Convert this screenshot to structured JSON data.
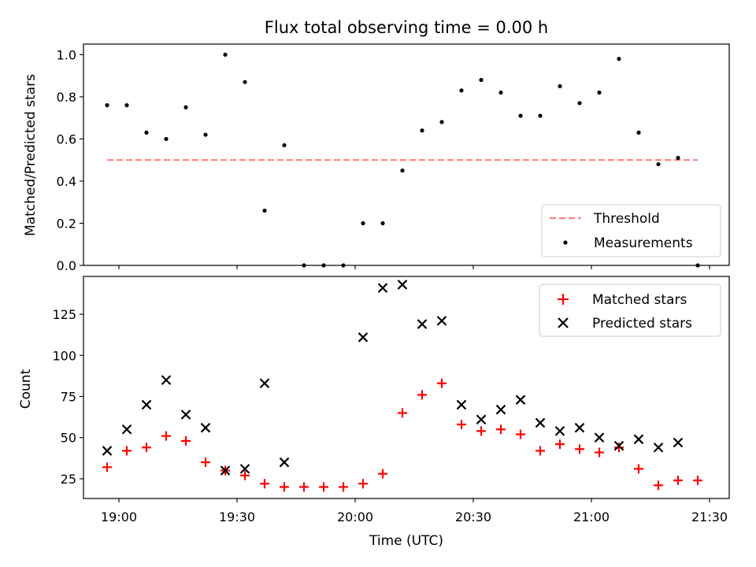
{
  "chart_data": [
    {
      "type": "scatter",
      "title": "Flux total observing time = 0.00 h",
      "ylabel": "Matched/Predicted stars",
      "xlabel": "",
      "xlim": [
        "18:51",
        "21:35"
      ],
      "ylim": [
        0,
        1.05
      ],
      "yticks": [
        0.0,
        0.2,
        0.4,
        0.6,
        0.8,
        1.0
      ],
      "ytick_labels": [
        "0.0",
        "0.2",
        "0.4",
        "0.6",
        "0.8",
        "1.0"
      ],
      "legend_position": "lower-right",
      "legend": [
        "Threshold",
        "Measurements"
      ],
      "threshold": {
        "name": "Threshold",
        "value": 0.5,
        "x": [
          "18:57",
          "21:27"
        ],
        "color": "#ff7f7f",
        "style": "dashed"
      },
      "series": [
        {
          "name": "Measurements",
          "marker": "dot",
          "color": "#000000",
          "x": [
            "18:57",
            "19:02",
            "19:07",
            "19:12",
            "19:17",
            "19:22",
            "19:27",
            "19:32",
            "19:37",
            "19:42",
            "19:47",
            "19:52",
            "19:57",
            "20:02",
            "20:07",
            "20:12",
            "20:17",
            "20:22",
            "20:27",
            "20:32",
            "20:37",
            "20:42",
            "20:47",
            "20:52",
            "20:57",
            "21:02",
            "21:07",
            "21:12",
            "21:17",
            "21:22",
            "21:27"
          ],
          "y": [
            0.76,
            0.76,
            0.63,
            0.6,
            0.75,
            0.62,
            1.0,
            0.87,
            0.26,
            0.57,
            0.0,
            0.0,
            0.0,
            0.2,
            0.2,
            0.45,
            0.64,
            0.68,
            0.83,
            0.88,
            0.82,
            0.71,
            0.71,
            0.85,
            0.77,
            0.82,
            0.98,
            0.63,
            0.48,
            0.51,
            0.0
          ]
        }
      ]
    },
    {
      "type": "scatter",
      "title": "",
      "ylabel": "Count",
      "xlabel": "Time (UTC)",
      "xlim": [
        "18:51",
        "21:35"
      ],
      "ylim": [
        13,
        148
      ],
      "yticks": [
        25,
        50,
        75,
        100,
        125
      ],
      "ytick_labels": [
        "25",
        "50",
        "75",
        "100",
        "125"
      ],
      "xticks": [
        "19:00",
        "19:30",
        "20:00",
        "20:30",
        "21:00",
        "21:30"
      ],
      "legend_position": "upper-right",
      "legend": [
        "Matched stars",
        "Predicted stars"
      ],
      "series": [
        {
          "name": "Matched stars",
          "marker": "plus",
          "color": "#ff0000",
          "x": [
            "18:57",
            "19:02",
            "19:07",
            "19:12",
            "19:17",
            "19:22",
            "19:27",
            "19:32",
            "19:37",
            "19:42",
            "19:47",
            "19:52",
            "19:57",
            "20:02",
            "20:07",
            "20:12",
            "20:17",
            "20:22",
            "20:27",
            "20:32",
            "20:37",
            "20:42",
            "20:47",
            "20:52",
            "20:57",
            "21:02",
            "21:07",
            "21:12",
            "21:17",
            "21:22",
            "21:27"
          ],
          "y": [
            32,
            42,
            44,
            51,
            48,
            35,
            30,
            27,
            22,
            20,
            20,
            20,
            20,
            22,
            28,
            65,
            76,
            83,
            58,
            54,
            55,
            52,
            42,
            46,
            43,
            41,
            44,
            31,
            21,
            24,
            24
          ]
        },
        {
          "name": "Predicted stars",
          "marker": "x",
          "color": "#000000",
          "x": [
            "18:57",
            "19:02",
            "19:07",
            "19:12",
            "19:17",
            "19:22",
            "19:27",
            "19:32",
            "19:37",
            "19:42",
            "20:02",
            "20:07",
            "20:12",
            "20:17",
            "20:22",
            "20:27",
            "20:32",
            "20:37",
            "20:42",
            "20:47",
            "20:52",
            "20:57",
            "21:02",
            "21:07",
            "21:12",
            "21:17",
            "21:22"
          ],
          "y": [
            42,
            55,
            70,
            85,
            64,
            56,
            30,
            31,
            83,
            35,
            111,
            141,
            143,
            119,
            121,
            70,
            61,
            67,
            73,
            59,
            54,
            56,
            50,
            45,
            49,
            44,
            47
          ]
        }
      ]
    }
  ]
}
